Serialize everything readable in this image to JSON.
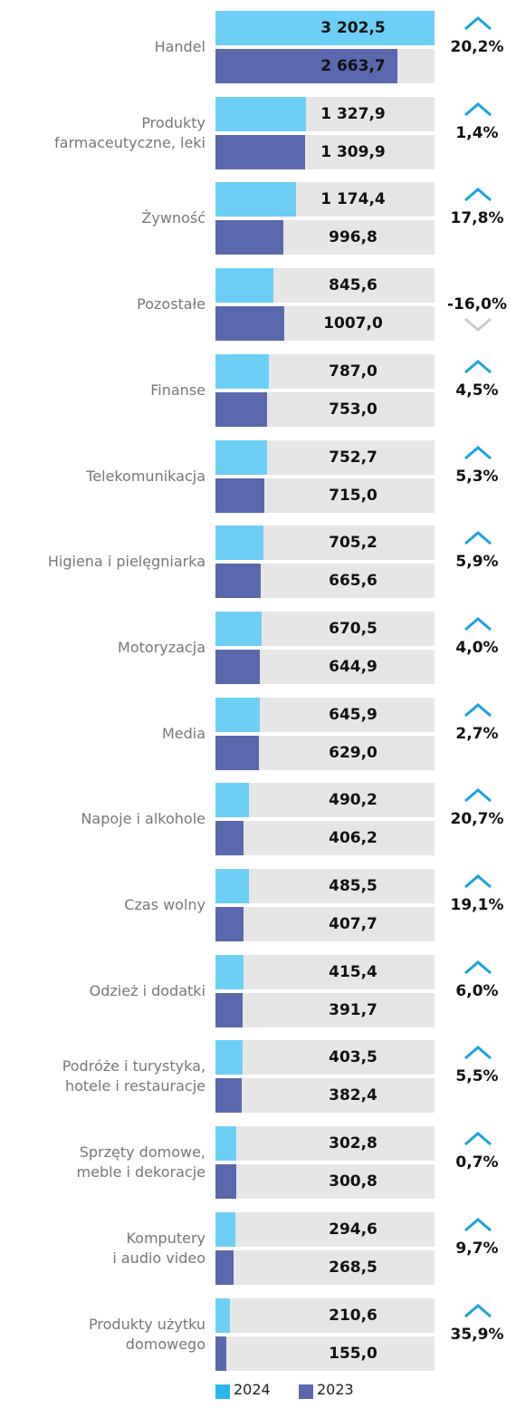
{
  "chart_data": {
    "type": "bar",
    "orientation": "horizontal",
    "categories": [
      "Handel",
      "Produkty\nfarmaceutyczne, leki",
      "Żywność",
      "Pozostałe",
      "Finanse",
      "Telekomunikacja",
      "Higiena i pielęgniarka",
      "Motoryzacja",
      "Media",
      "Napoje i alkohole",
      "Czas wolny",
      "Odzież i dodatki",
      "Podróże i turystyka,\nhotele i restauracje",
      "Sprzęty domowe,\nmeble i dekoracje",
      "Komputery\ni audio video",
      "Produkty użytku\ndomowego"
    ],
    "series": [
      {
        "name": "2024",
        "color": "#6dcff6",
        "legend_color": "#29b6f0",
        "values": [
          3202.5,
          1327.9,
          1174.4,
          845.6,
          787.0,
          752.7,
          705.2,
          670.5,
          645.9,
          490.2,
          485.5,
          415.4,
          403.5,
          302.8,
          294.6,
          210.6
        ],
        "value_labels": [
          "3 202,5",
          "1 327,9",
          "1 174,4",
          "845,6",
          "787,0",
          "752,7",
          "705,2",
          "670,5",
          "645,9",
          "490,2",
          "485,5",
          "415,4",
          "403,5",
          "302,8",
          "294,6",
          "210,6"
        ]
      },
      {
        "name": "2023",
        "color": "#5a68ad",
        "legend_color": "#5a68ad",
        "values": [
          2663.7,
          1309.9,
          996.8,
          1007.0,
          753.0,
          715.0,
          665.6,
          644.9,
          629.0,
          406.2,
          407.7,
          391.7,
          382.4,
          300.8,
          268.5,
          155.0
        ],
        "value_labels": [
          "2 663,7",
          "1 309,9",
          "996,8",
          "1007,0",
          "753,0",
          "715,0",
          "665,6",
          "644,9",
          "629,0",
          "406,2",
          "407,7",
          "391,7",
          "382,4",
          "300,8",
          "268,5",
          "155,0"
        ]
      }
    ],
    "changes": [
      20.2,
      1.4,
      17.8,
      -16.0,
      4.5,
      5.3,
      5.9,
      4.0,
      2.7,
      20.7,
      19.1,
      6.0,
      5.5,
      0.7,
      9.7,
      35.9
    ],
    "change_labels": [
      "20,2%",
      "1,4%",
      "17,8%",
      "-16,0%",
      "4,5%",
      "5,3%",
      "5,9%",
      "4,0%",
      "2,7%",
      "20,7%",
      "19,1%",
      "6,0%",
      "5,5%",
      "0,7%",
      "9,7%",
      "35,9%"
    ],
    "xlim": [
      0,
      3202.5
    ]
  }
}
